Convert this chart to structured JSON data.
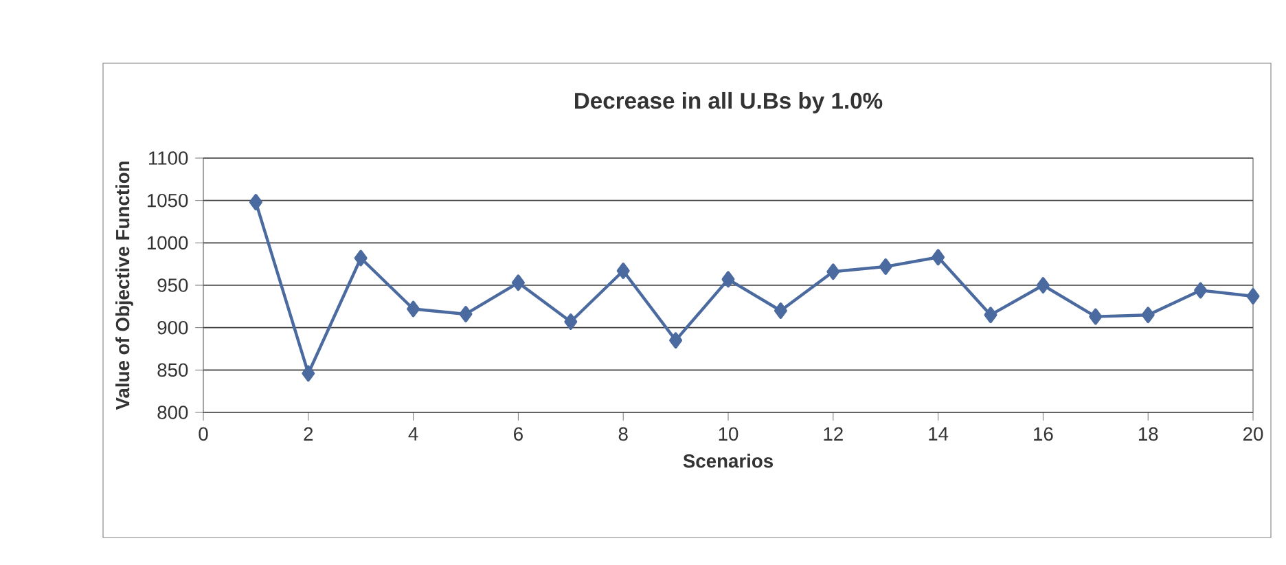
{
  "chart_data": {
    "type": "line",
    "title": "Decrease in all U.Bs by 1.0%",
    "xlabel": "Scenarios",
    "ylabel": "Value of Objective Function",
    "x": [
      1,
      2,
      3,
      4,
      5,
      6,
      7,
      8,
      9,
      10,
      11,
      12,
      13,
      14,
      15,
      16,
      17,
      18,
      19,
      20
    ],
    "series": [
      {
        "color": "#4a6aa0",
        "values": [
          1048,
          846,
          982,
          922,
          916,
          953,
          907,
          967,
          885,
          957,
          920,
          966,
          972,
          983,
          915,
          950,
          913,
          915,
          944,
          937
        ]
      }
    ],
    "xlim": [
      0,
      20
    ],
    "ylim": [
      800,
      1100
    ],
    "xticks": [
      0,
      2,
      4,
      6,
      8,
      10,
      12,
      14,
      16,
      18,
      20
    ],
    "yticks": [
      800,
      850,
      900,
      950,
      1000,
      1050,
      1100
    ],
    "grid": "y",
    "marker": "diamond",
    "line_style": "solid"
  }
}
